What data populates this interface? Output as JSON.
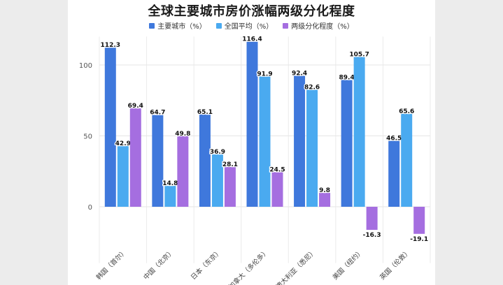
{
  "chart_data": {
    "type": "bar",
    "title": "全球主要城市房价涨幅两级分化程度",
    "categories": [
      "韩国（首尔）",
      "中国（北京）",
      "日本（东京）",
      "加拿大（多伦多）",
      "澳大利亚（悉尼）",
      "美国（纽约）",
      "英国（伦敦）"
    ],
    "series": [
      {
        "name": "主要城市（%）",
        "color": "#3f78dc",
        "values": [
          112.3,
          64.7,
          65.1,
          116.4,
          92.4,
          89.4,
          46.5
        ]
      },
      {
        "name": "全国平均（%）",
        "color": "#4aaaf0",
        "values": [
          42.9,
          14.8,
          36.9,
          91.9,
          82.6,
          105.7,
          65.6
        ]
      },
      {
        "name": "两级分化程度（%）",
        "color": "#a56ee0",
        "values": [
          69.4,
          49.8,
          28.1,
          24.5,
          9.8,
          -16.3,
          -19.1
        ]
      }
    ],
    "yticks": [
      0,
      50,
      100
    ],
    "ylim": [
      -20,
      120
    ],
    "grid": true,
    "legend": "top-center"
  }
}
